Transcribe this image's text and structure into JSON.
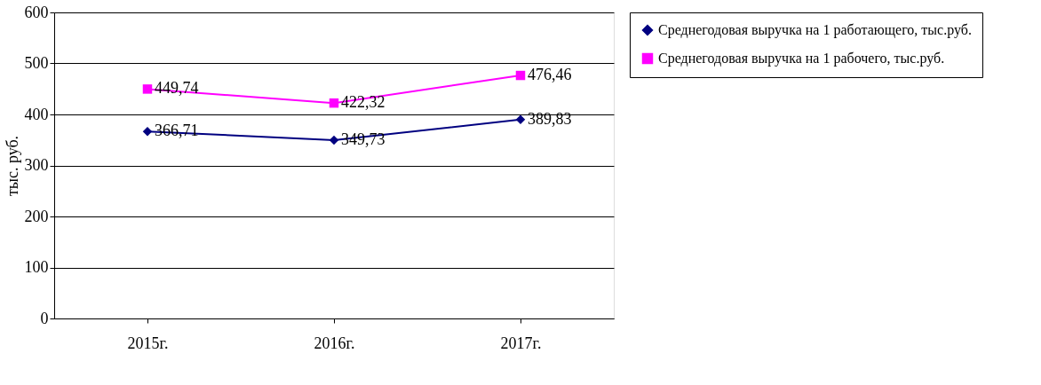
{
  "chart_data": {
    "type": "line",
    "ylabel": "тыс. руб.",
    "categories": [
      "2015г.",
      "2016г.",
      "2017г."
    ],
    "ylim": [
      0,
      600
    ],
    "yticks": [
      0,
      100,
      200,
      300,
      400,
      500,
      600
    ],
    "grid": "y",
    "legend": "right",
    "series": [
      {
        "name": "Среднегодовая выручка на 1 работающего, тыс.руб.",
        "color": "#000080",
        "marker": "diamond",
        "values": [
          366.71,
          349.73,
          389.83
        ],
        "value_labels": [
          "366,71",
          "349,73",
          "389,83"
        ]
      },
      {
        "name": "Среднегодовая выручка на 1 рабочего, тыс.руб.",
        "color": "#ff00ff",
        "marker": "square",
        "values": [
          449.74,
          422.32,
          476.46
        ],
        "value_labels": [
          "449,74",
          "422,32",
          "476,46"
        ]
      }
    ]
  }
}
